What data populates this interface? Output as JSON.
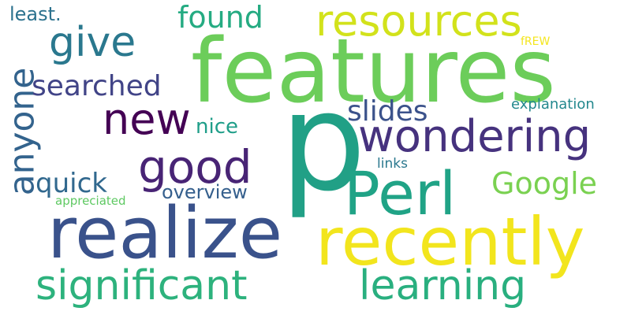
{
  "words": {
    "p": {
      "text": "p",
      "color": "#21a086"
    },
    "features": {
      "text": "features",
      "color": "#6ccd5a"
    },
    "realize": {
      "text": "realize",
      "color": "#3a528b"
    },
    "recently": {
      "text": "recently",
      "color": "#f2e51d"
    },
    "perl": {
      "text": "Perl",
      "color": "#20a386"
    },
    "resources": {
      "text": "resources",
      "color": "#d2e21b"
    },
    "wondering": {
      "text": "wondering",
      "color": "#46327e"
    },
    "significant": {
      "text": "significant",
      "color": "#2db27d"
    },
    "learning": {
      "text": "learning",
      "color": "#29af7f"
    },
    "good": {
      "text": "good",
      "color": "#482475"
    },
    "give": {
      "text": "give",
      "color": "#2a788e"
    },
    "new": {
      "text": "new",
      "color": "#440154"
    },
    "anyone": {
      "text": "anyone",
      "color": "#33638d"
    },
    "found": {
      "text": "found",
      "color": "#25ab82"
    },
    "searched": {
      "text": "searched",
      "color": "#414487"
    },
    "google": {
      "text": "Google",
      "color": "#7ad151"
    },
    "slides": {
      "text": "slides",
      "color": "#3b528b"
    },
    "quick": {
      "text": "quick",
      "color": "#31688e"
    },
    "overview": {
      "text": "overview",
      "color": "#355f8d"
    },
    "nice": {
      "text": "nice",
      "color": "#1f9e89"
    },
    "least": {
      "text": "least.",
      "color": "#2c728e"
    },
    "explanation": {
      "text": "explanation",
      "color": "#23888e"
    },
    "appreciated": {
      "text": "appreciated",
      "color": "#5ec962"
    },
    "links": {
      "text": "links",
      "color": "#2a788e"
    },
    "frew": {
      "text": "fREW",
      "color": "#f4e61e"
    }
  }
}
